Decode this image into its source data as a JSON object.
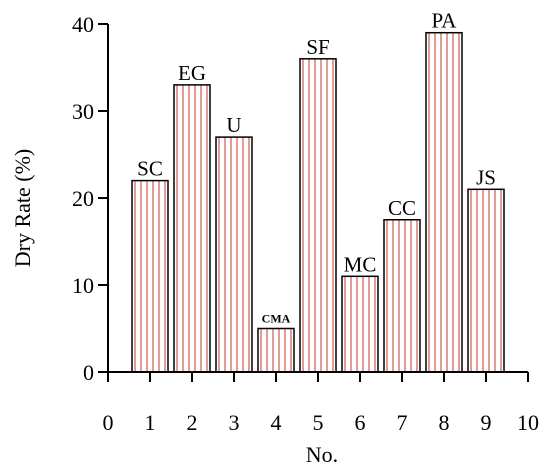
{
  "chart_data": {
    "type": "bar",
    "xlabel": "No.",
    "ylabel": "Dry Rate (%)",
    "xlim": [
      0,
      10
    ],
    "ylim": [
      0,
      40
    ],
    "xticks": [
      0,
      1,
      2,
      3,
      4,
      5,
      6,
      7,
      8,
      9,
      10
    ],
    "yticks": [
      0,
      10,
      20,
      30,
      40
    ],
    "grid": false,
    "bar_fill": "vertical red hatching",
    "colors": {
      "bar_edge": "#000000",
      "hatch": "#c0392b"
    },
    "bars": [
      {
        "x": 1,
        "value": 22,
        "label": "SC"
      },
      {
        "x": 2,
        "value": 33,
        "label": "EG"
      },
      {
        "x": 3,
        "value": 27,
        "label": "U"
      },
      {
        "x": 4,
        "value": 5,
        "label": "CMA"
      },
      {
        "x": 5,
        "value": 36,
        "label": "SF"
      },
      {
        "x": 6,
        "value": 11,
        "label": "MC"
      },
      {
        "x": 7,
        "value": 17.5,
        "label": "CC"
      },
      {
        "x": 8,
        "value": 39,
        "label": "PA"
      },
      {
        "x": 9,
        "value": 21,
        "label": "JS"
      }
    ]
  }
}
